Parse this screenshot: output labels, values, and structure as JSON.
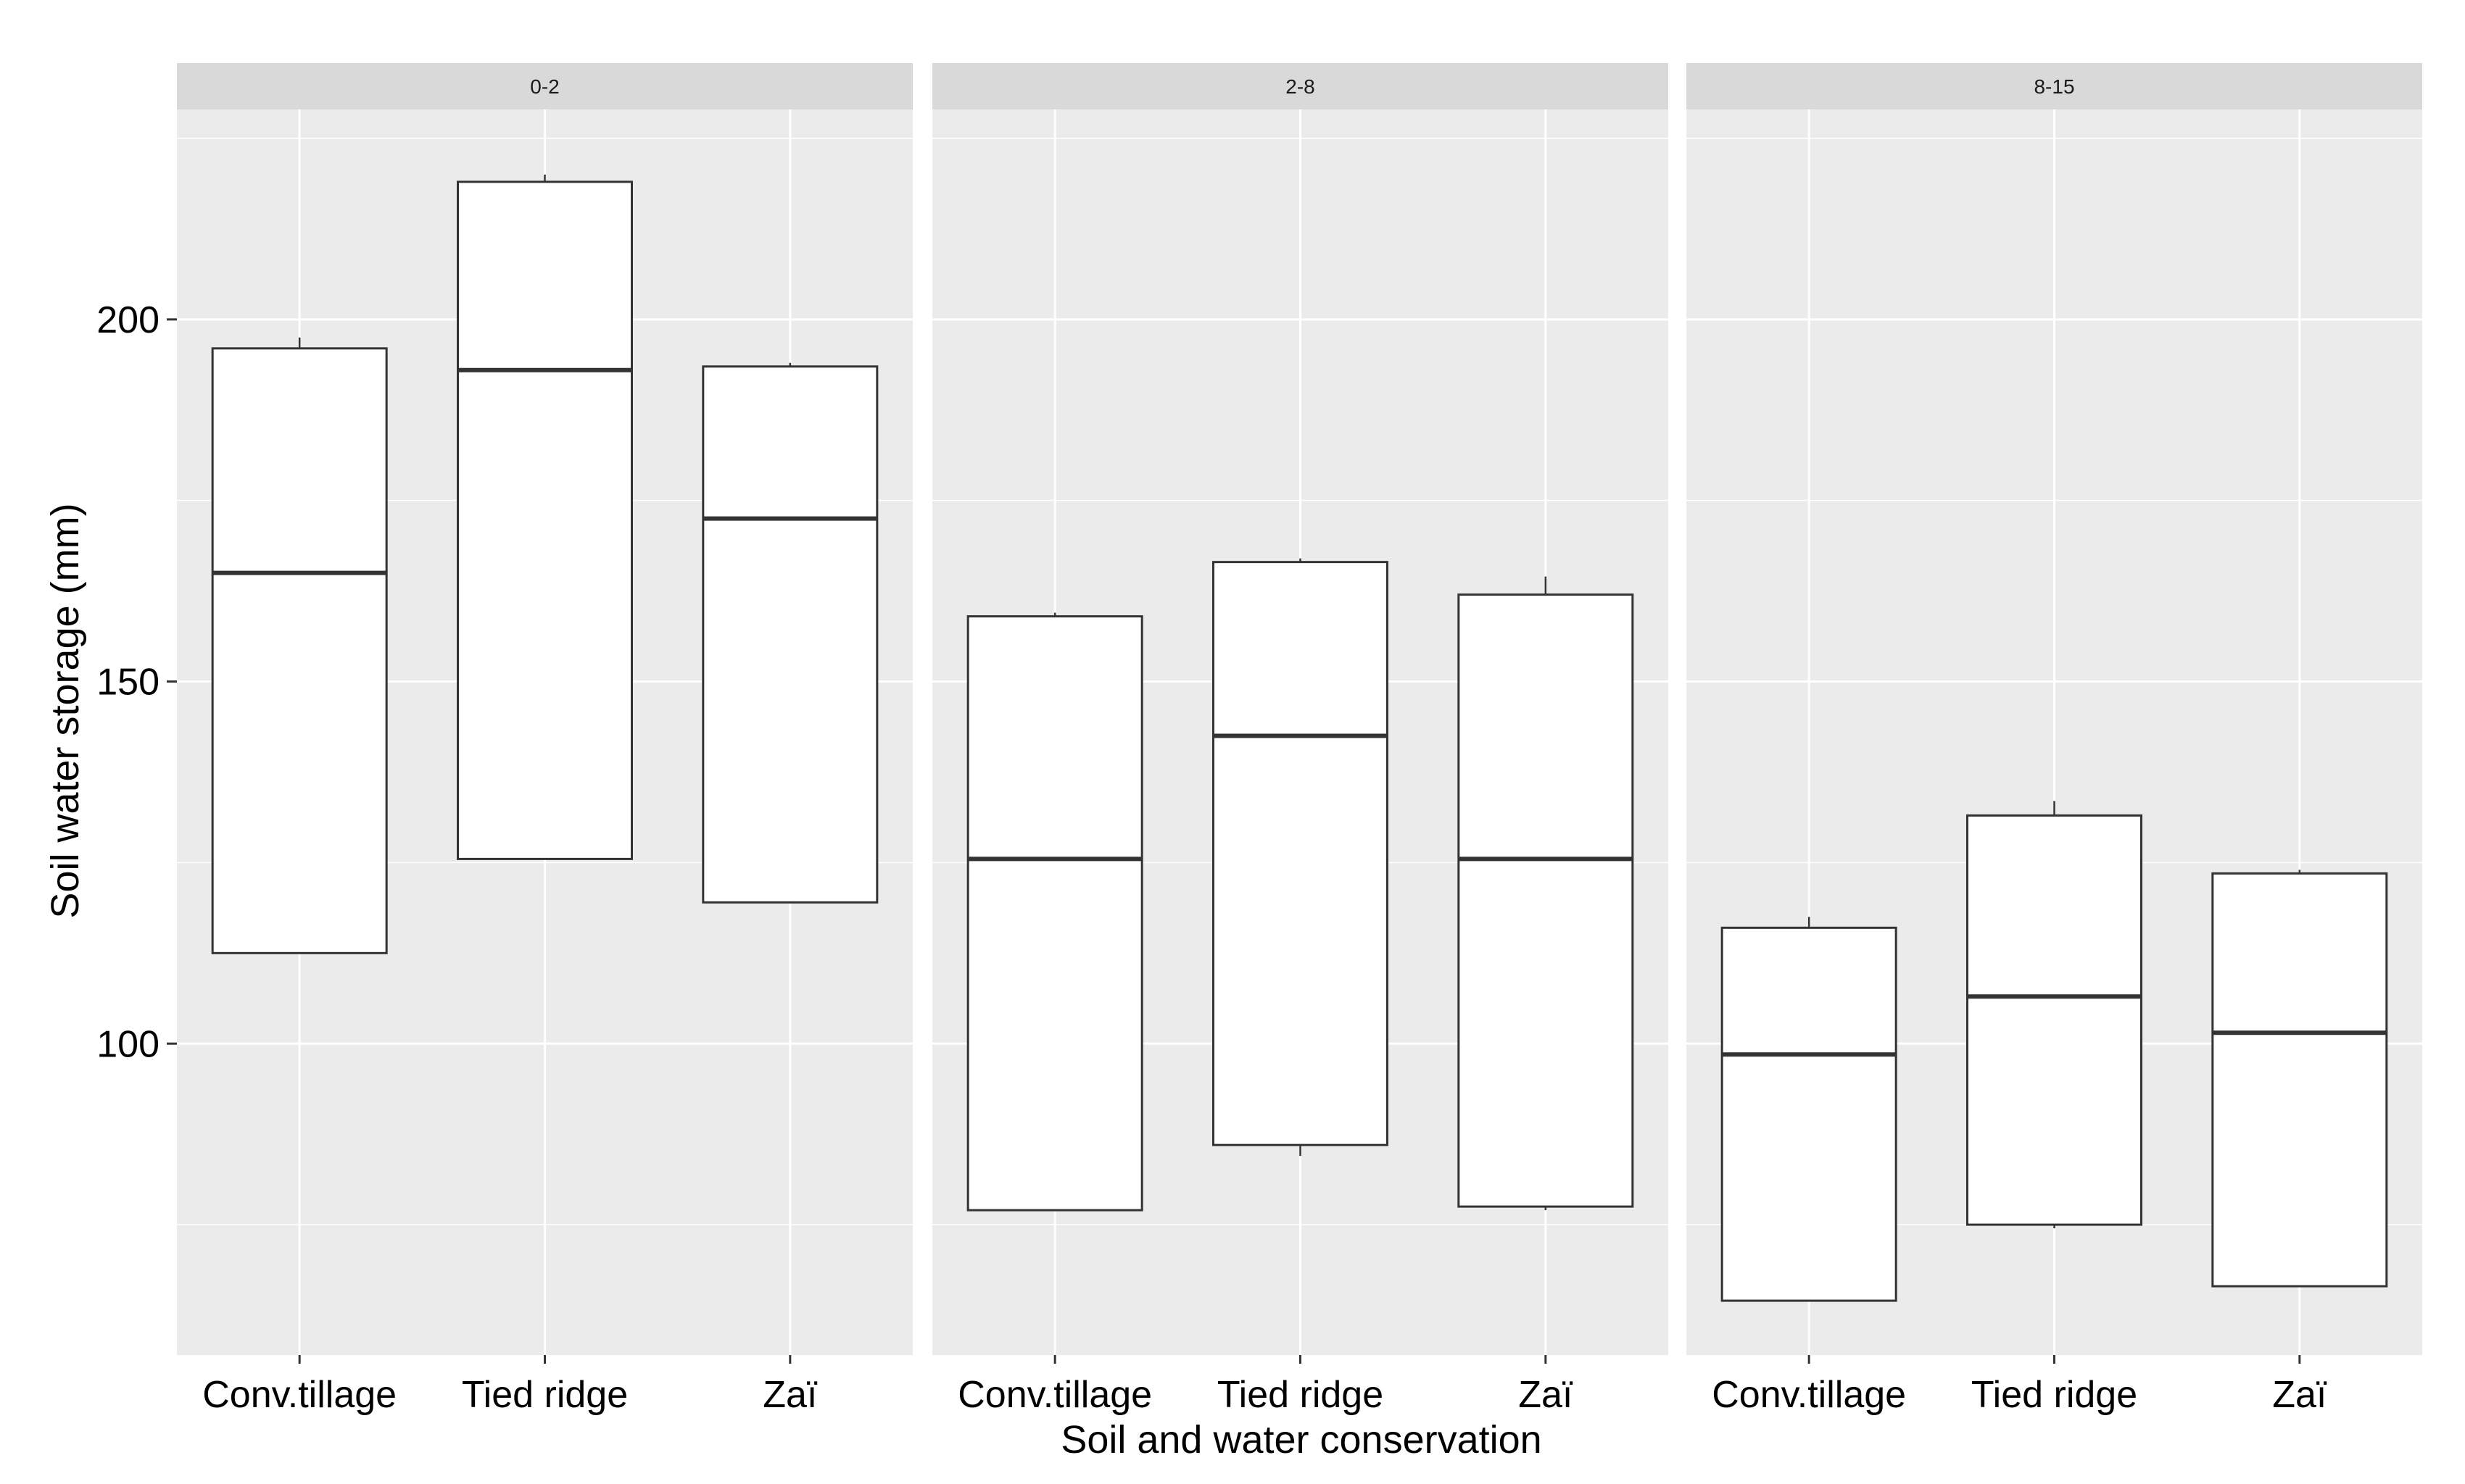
{
  "chart_data": {
    "type": "boxplot",
    "xlabel": "Soil and water conservation",
    "ylabel": "Soil water storage (mm)",
    "ylim": [
      57,
      229
    ],
    "yticks": [
      100,
      150,
      200
    ],
    "y_minor_ticks": [
      75,
      125,
      175,
      225
    ],
    "grid": true,
    "facets": [
      {
        "label": "0-2",
        "boxes": [
          {
            "category": "Conv.tillage",
            "min": 112.5,
            "q1": 112.5,
            "median": 165.0,
            "q3": 196.0,
            "max": 197.5
          },
          {
            "category": "Tied ridge",
            "min": 125.5,
            "q1": 125.5,
            "median": 193.0,
            "q3": 219.0,
            "max": 220.0
          },
          {
            "category": "Zaï",
            "min": 119.5,
            "q1": 119.5,
            "median": 172.5,
            "q3": 193.5,
            "max": 194.0
          }
        ]
      },
      {
        "label": "2-8",
        "boxes": [
          {
            "category": "Conv.tillage",
            "min": 77.0,
            "q1": 77.0,
            "median": 125.5,
            "q3": 159.0,
            "max": 159.5
          },
          {
            "category": "Tied ridge",
            "min": 84.5,
            "q1": 86.0,
            "median": 142.5,
            "q3": 166.5,
            "max": 167.0
          },
          {
            "category": "Zaï",
            "min": 77.0,
            "q1": 77.5,
            "median": 125.5,
            "q3": 162.0,
            "max": 164.5
          }
        ]
      },
      {
        "label": "8-15",
        "boxes": [
          {
            "category": "Conv.tillage",
            "min": 64.5,
            "q1": 64.5,
            "median": 98.5,
            "q3": 116.0,
            "max": 117.5
          },
          {
            "category": "Tied ridge",
            "min": 74.5,
            "q1": 75.0,
            "median": 106.5,
            "q3": 131.5,
            "max": 133.5
          },
          {
            "category": "Zaï",
            "min": 66.5,
            "q1": 66.5,
            "median": 101.5,
            "q3": 123.5,
            "max": 124.0
          }
        ]
      }
    ]
  },
  "colors": {
    "panel_background": "#ebebeb",
    "strip_background": "#d9d9d9",
    "grid_line": "#ffffff",
    "box_fill": "#ffffff",
    "box_outline": "#333333",
    "median_line": "#333333"
  }
}
